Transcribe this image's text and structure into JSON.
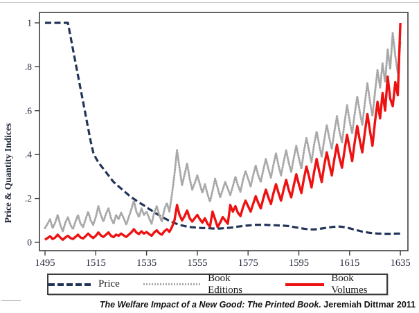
{
  "figure": {
    "ylabel": "Price & Quantity Indices",
    "caption_title": "The Welfare Impact of a New Good: The Printed Book.",
    "caption_author": "Jeremiah Dittmar 2011"
  },
  "legend": {
    "items": [
      {
        "label": "Price",
        "color": "#223458",
        "style": "dashed"
      },
      {
        "label": "Book Editions",
        "color": "#a8a8a8",
        "style": "dotted"
      },
      {
        "label": "Book Volumes",
        "color": "#ee1111",
        "style": "solid"
      }
    ]
  },
  "chart_data": {
    "type": "line",
    "title": "",
    "xlabel": "",
    "ylabel": "Price & Quantity Indices",
    "xlim": [
      1495,
      1635
    ],
    "ylim": [
      0,
      1
    ],
    "grid": false,
    "legend_position": "bottom",
    "x_tick_labels": [
      "1495",
      "1515",
      "1535",
      "1555",
      "1575",
      "1595",
      "1615",
      "1635"
    ],
    "y_tick_labels": [
      "0",
      ".2",
      ".4",
      ".6",
      ".8",
      "1"
    ],
    "x_start": 1495,
    "x_step": 1,
    "series": [
      {
        "name": "Price",
        "color": "#223458",
        "style": "dashed",
        "width": 3.2,
        "dash": "9 4.5",
        "values": [
          1,
          1,
          1,
          1,
          1,
          1,
          1,
          1,
          1,
          1,
          0.94,
          0.88,
          0.82,
          0.76,
          0.7,
          0.64,
          0.58,
          0.52,
          0.46,
          0.41,
          0.385,
          0.365,
          0.35,
          0.335,
          0.32,
          0.305,
          0.29,
          0.275,
          0.265,
          0.255,
          0.245,
          0.235,
          0.225,
          0.215,
          0.205,
          0.198,
          0.19,
          0.182,
          0.175,
          0.168,
          0.16,
          0.152,
          0.145,
          0.138,
          0.13,
          0.123,
          0.116,
          0.11,
          0.104,
          0.098,
          0.093,
          0.088,
          0.084,
          0.08,
          0.077,
          0.074,
          0.072,
          0.07,
          0.069,
          0.068,
          0.067,
          0.066,
          0.065,
          0.065,
          0.064,
          0.064,
          0.063,
          0.063,
          0.063,
          0.063,
          0.064,
          0.065,
          0.066,
          0.067,
          0.068,
          0.07,
          0.072,
          0.073,
          0.075,
          0.076,
          0.077,
          0.078,
          0.079,
          0.08,
          0.08,
          0.08,
          0.08,
          0.08,
          0.079,
          0.079,
          0.078,
          0.078,
          0.077,
          0.077,
          0.076,
          0.075,
          0.074,
          0.072,
          0.07,
          0.068,
          0.066,
          0.064,
          0.062,
          0.061,
          0.06,
          0.059,
          0.059,
          0.06,
          0.061,
          0.063,
          0.065,
          0.067,
          0.068,
          0.07,
          0.071,
          0.072,
          0.072,
          0.071,
          0.069,
          0.067,
          0.064,
          0.061,
          0.058,
          0.055,
          0.052,
          0.049,
          0.047,
          0.045,
          0.043,
          0.042,
          0.041,
          0.04,
          0.04,
          0.039,
          0.039,
          0.039,
          0.039,
          0.039,
          0.04,
          0.04,
          0.04
        ]
      },
      {
        "name": "Book Editions",
        "color": "#a8a8a8",
        "style": "dotted",
        "width": 3,
        "dash": "1 2.6",
        "linecap": "round",
        "values": [
          0.065,
          0.085,
          0.105,
          0.065,
          0.09,
          0.125,
          0.08,
          0.05,
          0.09,
          0.115,
          0.08,
          0.06,
          0.095,
          0.125,
          0.085,
          0.07,
          0.105,
          0.14,
          0.1,
          0.08,
          0.115,
          0.165,
          0.125,
          0.095,
          0.13,
          0.155,
          0.11,
          0.085,
          0.125,
          0.105,
          0.135,
          0.11,
          0.08,
          0.115,
          0.15,
          0.19,
          0.14,
          0.115,
          0.155,
          0.125,
          0.14,
          0.11,
          0.085,
          0.135,
          0.165,
          0.125,
          0.095,
          0.15,
          0.18,
          0.14,
          0.22,
          0.31,
          0.42,
          0.34,
          0.26,
          0.31,
          0.36,
          0.29,
          0.24,
          0.27,
          0.305,
          0.265,
          0.225,
          0.265,
          0.22,
          0.185,
          0.235,
          0.29,
          0.25,
          0.205,
          0.24,
          0.275,
          0.245,
          0.215,
          0.255,
          0.3,
          0.26,
          0.23,
          0.285,
          0.325,
          0.29,
          0.255,
          0.305,
          0.35,
          0.305,
          0.275,
          0.33,
          0.38,
          0.335,
          0.295,
          0.355,
          0.405,
          0.35,
          0.305,
          0.365,
          0.42,
          0.365,
          0.32,
          0.385,
          0.44,
          0.385,
          0.335,
          0.415,
          0.475,
          0.42,
          0.365,
          0.445,
          0.505,
          0.445,
          0.39,
          0.465,
          0.535,
          0.475,
          0.425,
          0.505,
          0.575,
          0.505,
          0.455,
          0.545,
          0.625,
          0.555,
          0.495,
          0.585,
          0.665,
          0.595,
          0.535,
          0.635,
          0.725,
          0.645,
          0.575,
          0.685,
          0.785,
          0.705,
          0.815,
          0.73,
          0.88,
          0.79,
          0.955,
          0.85,
          0.77,
          0.915
        ]
      },
      {
        "name": "Book Volumes",
        "color": "#ee1111",
        "style": "solid",
        "width": 3.4,
        "dash": "",
        "values": [
          0.012,
          0.02,
          0.028,
          0.015,
          0.022,
          0.035,
          0.022,
          0.012,
          0.022,
          0.03,
          0.02,
          0.015,
          0.025,
          0.035,
          0.022,
          0.018,
          0.028,
          0.04,
          0.028,
          0.02,
          0.03,
          0.045,
          0.032,
          0.025,
          0.035,
          0.045,
          0.03,
          0.024,
          0.035,
          0.03,
          0.04,
          0.032,
          0.025,
          0.035,
          0.045,
          0.06,
          0.045,
          0.038,
          0.05,
          0.04,
          0.047,
          0.038,
          0.03,
          0.045,
          0.055,
          0.042,
          0.035,
          0.05,
          0.06,
          0.048,
          0.07,
          0.1,
          0.17,
          0.125,
          0.1,
          0.12,
          0.145,
          0.11,
          0.095,
          0.11,
          0.125,
          0.105,
          0.09,
          0.11,
          0.085,
          0.072,
          0.14,
          0.105,
          0.07,
          0.09,
          0.115,
          0.1,
          0.085,
          0.17,
          0.14,
          0.165,
          0.135,
          0.12,
          0.16,
          0.19,
          0.165,
          0.14,
          0.175,
          0.21,
          0.18,
          0.155,
          0.2,
          0.24,
          0.205,
          0.175,
          0.225,
          0.265,
          0.225,
          0.19,
          0.24,
          0.285,
          0.24,
          0.205,
          0.26,
          0.31,
          0.265,
          0.225,
          0.29,
          0.345,
          0.3,
          0.25,
          0.32,
          0.38,
          0.325,
          0.275,
          0.35,
          0.41,
          0.355,
          0.305,
          0.38,
          0.445,
          0.385,
          0.34,
          0.42,
          0.49,
          0.43,
          0.37,
          0.455,
          0.53,
          0.465,
          0.41,
          0.5,
          0.585,
          0.51,
          0.44,
          0.55,
          0.64,
          0.565,
          0.68,
          0.6,
          0.755,
          0.655,
          0.62,
          0.73,
          0.67,
          1.0
        ]
      }
    ]
  }
}
